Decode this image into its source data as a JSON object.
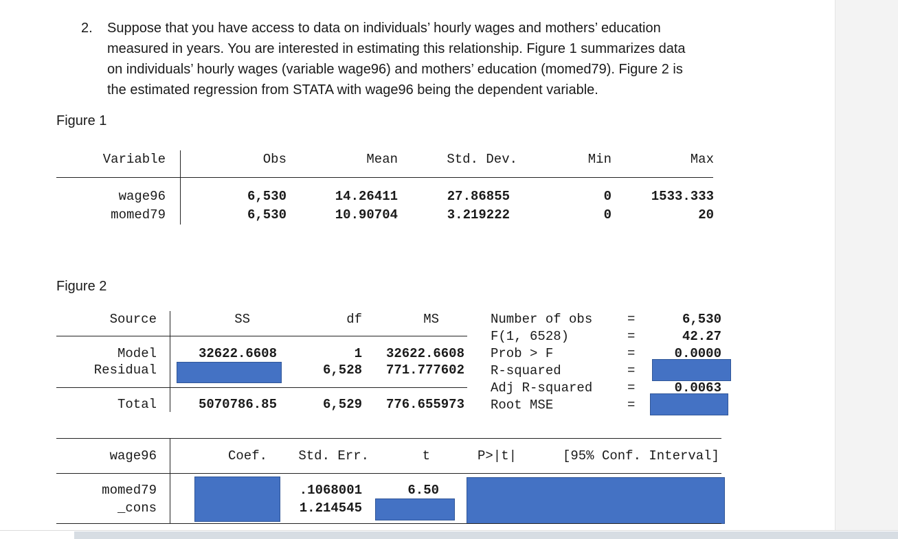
{
  "question": {
    "number": "2.",
    "lines": [
      "Suppose that you have access to data on individuals’ hourly wages and mothers’ education",
      "measured in years. You are interested in estimating this relationship. Figure 1 summarizes data",
      "on individuals’ hourly wages (variable wage96) and mothers’ education (momed79). Figure 2 is",
      "the estimated regression from STATA with wage96 being the dependent variable."
    ]
  },
  "figure1": {
    "label": "Figure 1",
    "headers": {
      "variable": "Variable",
      "obs": "Obs",
      "mean": "Mean",
      "sd": "Std. Dev.",
      "min": "Min",
      "max": "Max"
    },
    "rows": [
      {
        "variable": "wage96",
        "obs": "6,530",
        "mean": "14.26411",
        "sd": "27.86855",
        "min": "0",
        "max": "1533.333"
      },
      {
        "variable": "momed79",
        "obs": "6,530",
        "mean": "10.90704",
        "sd": "3.219222",
        "min": "0",
        "max": "20"
      }
    ]
  },
  "figure2": {
    "label": "Figure 2",
    "anova": {
      "headers": {
        "source": "Source",
        "ss": "SS",
        "df": "df",
        "ms": "MS"
      },
      "model": {
        "source": "Model",
        "ss": "32622.6608",
        "df": "1",
        "ms": "32622.6608"
      },
      "residual": {
        "source": "Residual",
        "ss": "",
        "df": "6,528",
        "ms": "771.777602"
      },
      "total": {
        "source": "Total",
        "ss": "5070786.85",
        "df": "6,529",
        "ms": "776.655973"
      }
    },
    "stats": [
      {
        "label": "Number of obs",
        "eq": "=",
        "value": "6,530"
      },
      {
        "label": "F(1, 6528)",
        "eq": "=",
        "value": "42.27"
      },
      {
        "label": "Prob > F",
        "eq": "=",
        "value": "0.0000"
      },
      {
        "label": "R-squared",
        "eq": "=",
        "value": ""
      },
      {
        "label": "Adj R-squared",
        "eq": "=",
        "value": "0.0063"
      },
      {
        "label": "Root MSE",
        "eq": "=",
        "value": ""
      }
    ],
    "coef": {
      "headers": {
        "dep": "wage96",
        "coef": "Coef.",
        "se": "Std. Err.",
        "t": "t",
        "p": "P>|t|",
        "ci": "[95% Conf. Interval]"
      },
      "rows": [
        {
          "var": "momed79",
          "coef": "",
          "se": ".1068001",
          "t": "6.50"
        },
        {
          "var": "_cons",
          "coef": "",
          "se": "1.214545",
          "t": ""
        }
      ]
    }
  }
}
